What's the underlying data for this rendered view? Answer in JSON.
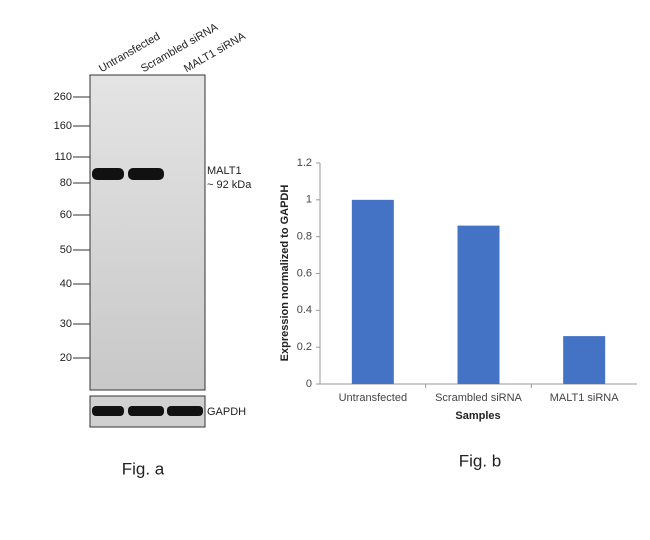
{
  "blot": {
    "lanes": [
      "Untransfected",
      "Scrambled siRNA",
      "MALT1 siRNA"
    ],
    "markers": [
      "260",
      "160",
      "110",
      "80",
      "60",
      "50",
      "40",
      "30",
      "20"
    ],
    "band_label": "MALT1",
    "band_size": "~ 92 kDa",
    "loading_label": "GAPDH",
    "caption": "Fig. a"
  },
  "chart_data": {
    "type": "bar",
    "categories": [
      "Untransfected",
      "Scrambled siRNA",
      "MALT1 siRNA"
    ],
    "values": [
      1,
      0.86,
      0.26
    ],
    "color": "#4472c4",
    "ylim": [
      0,
      1.2
    ],
    "yticks": [
      0,
      0.2,
      0.4,
      0.6,
      0.8,
      1,
      1.2
    ],
    "xlabel": "Samples",
    "ylabel": "Expression  normalized to GAPDH",
    "caption": "Fig. b"
  }
}
